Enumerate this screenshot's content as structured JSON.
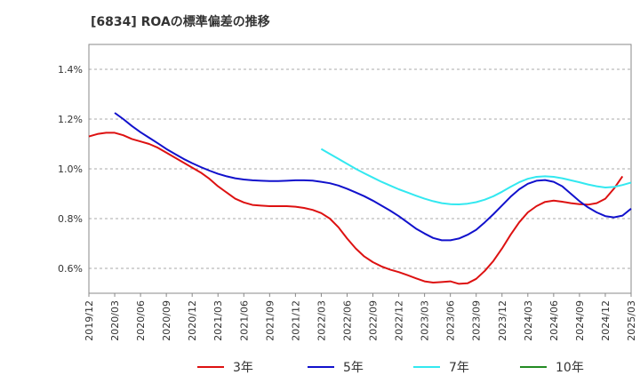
{
  "chart_data": {
    "type": "line",
    "title": "[6834]  ROAの標準偏差の推移",
    "xlabel": "",
    "ylabel": "",
    "ylim": [
      0.5,
      1.5
    ],
    "yticks": [
      0.6,
      0.8,
      1.0,
      1.2,
      1.4
    ],
    "ytick_labels": [
      "0.6%",
      "0.8%",
      "1.0%",
      "1.2%",
      "1.4%"
    ],
    "xtick_labels": [
      "2019/12",
      "2020/03",
      "2020/06",
      "2020/09",
      "2020/12",
      "2021/03",
      "2021/06",
      "2021/09",
      "2021/12",
      "2022/03",
      "2022/06",
      "2022/09",
      "2022/12",
      "2023/03",
      "2023/06",
      "2023/09",
      "2023/12",
      "2024/03",
      "2024/06",
      "2024/09",
      "2024/12",
      "2025/03"
    ],
    "grid": "horizontal",
    "legend_position": "bottom",
    "series": [
      {
        "name": "3年",
        "color": "#dd1111",
        "points": [
          [
            "2019/12",
            1.13
          ],
          [
            "2020/01",
            1.14
          ],
          [
            "2020/02",
            1.145
          ],
          [
            "2020/03",
            1.145
          ],
          [
            "2020/04",
            1.135
          ],
          [
            "2020/05",
            1.12
          ],
          [
            "2020/06",
            1.11
          ],
          [
            "2020/07",
            1.1
          ],
          [
            "2020/08",
            1.085
          ],
          [
            "2020/09",
            1.065
          ],
          [
            "2020/10",
            1.045
          ],
          [
            "2020/11",
            1.025
          ],
          [
            "2020/12",
            1.005
          ],
          [
            "2021/01",
            0.985
          ],
          [
            "2021/02",
            0.96
          ],
          [
            "2021/03",
            0.93
          ],
          [
            "2021/04",
            0.905
          ],
          [
            "2021/05",
            0.88
          ],
          [
            "2021/06",
            0.865
          ],
          [
            "2021/07",
            0.855
          ],
          [
            "2021/08",
            0.852
          ],
          [
            "2021/09",
            0.85
          ],
          [
            "2021/10",
            0.85
          ],
          [
            "2021/11",
            0.85
          ],
          [
            "2021/12",
            0.848
          ],
          [
            "2022/01",
            0.843
          ],
          [
            "2022/02",
            0.835
          ],
          [
            "2022/03",
            0.822
          ],
          [
            "2022/04",
            0.8
          ],
          [
            "2022/05",
            0.765
          ],
          [
            "2022/06",
            0.72
          ],
          [
            "2022/07",
            0.68
          ],
          [
            "2022/08",
            0.648
          ],
          [
            "2022/09",
            0.625
          ],
          [
            "2022/10",
            0.608
          ],
          [
            "2022/11",
            0.595
          ],
          [
            "2022/12",
            0.585
          ],
          [
            "2023/01",
            0.573
          ],
          [
            "2023/02",
            0.56
          ],
          [
            "2023/03",
            0.548
          ],
          [
            "2023/04",
            0.543
          ],
          [
            "2023/05",
            0.545
          ],
          [
            "2023/06",
            0.548
          ],
          [
            "2023/07",
            0.538
          ],
          [
            "2023/08",
            0.54
          ],
          [
            "2023/09",
            0.558
          ],
          [
            "2023/10",
            0.59
          ],
          [
            "2023/11",
            0.63
          ],
          [
            "2023/12",
            0.68
          ],
          [
            "2024/01",
            0.735
          ],
          [
            "2024/02",
            0.785
          ],
          [
            "2024/03",
            0.825
          ],
          [
            "2024/04",
            0.85
          ],
          [
            "2024/05",
            0.867
          ],
          [
            "2024/06",
            0.872
          ],
          [
            "2024/07",
            0.868
          ],
          [
            "2024/08",
            0.862
          ],
          [
            "2024/09",
            0.858
          ],
          [
            "2024/10",
            0.856
          ],
          [
            "2024/11",
            0.862
          ],
          [
            "2024/12",
            0.88
          ],
          [
            "2025/01",
            0.92
          ],
          [
            "2025/02",
            0.97
          ]
        ]
      },
      {
        "name": "5年",
        "color": "#1111cc",
        "points": [
          [
            "2020/03",
            1.225
          ],
          [
            "2020/04",
            1.2
          ],
          [
            "2020/05",
            1.172
          ],
          [
            "2020/06",
            1.147
          ],
          [
            "2020/07",
            1.125
          ],
          [
            "2020/08",
            1.103
          ],
          [
            "2020/09",
            1.08
          ],
          [
            "2020/10",
            1.06
          ],
          [
            "2020/11",
            1.04
          ],
          [
            "2020/12",
            1.023
          ],
          [
            "2021/01",
            1.007
          ],
          [
            "2021/02",
            0.993
          ],
          [
            "2021/03",
            0.98
          ],
          [
            "2021/04",
            0.97
          ],
          [
            "2021/05",
            0.962
          ],
          [
            "2021/06",
            0.957
          ],
          [
            "2021/07",
            0.954
          ],
          [
            "2021/08",
            0.952
          ],
          [
            "2021/09",
            0.951
          ],
          [
            "2021/10",
            0.951
          ],
          [
            "2021/11",
            0.952
          ],
          [
            "2021/12",
            0.954
          ],
          [
            "2022/01",
            0.954
          ],
          [
            "2022/02",
            0.953
          ],
          [
            "2022/03",
            0.948
          ],
          [
            "2022/04",
            0.942
          ],
          [
            "2022/05",
            0.933
          ],
          [
            "2022/06",
            0.92
          ],
          [
            "2022/07",
            0.905
          ],
          [
            "2022/08",
            0.89
          ],
          [
            "2022/09",
            0.872
          ],
          [
            "2022/10",
            0.852
          ],
          [
            "2022/11",
            0.832
          ],
          [
            "2022/12",
            0.81
          ],
          [
            "2023/01",
            0.785
          ],
          [
            "2023/02",
            0.76
          ],
          [
            "2023/03",
            0.74
          ],
          [
            "2023/04",
            0.722
          ],
          [
            "2023/05",
            0.713
          ],
          [
            "2023/06",
            0.713
          ],
          [
            "2023/07",
            0.72
          ],
          [
            "2023/08",
            0.735
          ],
          [
            "2023/09",
            0.755
          ],
          [
            "2023/10",
            0.785
          ],
          [
            "2023/11",
            0.818
          ],
          [
            "2023/12",
            0.853
          ],
          [
            "2024/01",
            0.888
          ],
          [
            "2024/02",
            0.918
          ],
          [
            "2024/03",
            0.94
          ],
          [
            "2024/04",
            0.952
          ],
          [
            "2024/05",
            0.955
          ],
          [
            "2024/06",
            0.948
          ],
          [
            "2024/07",
            0.93
          ],
          [
            "2024/08",
            0.9
          ],
          [
            "2024/09",
            0.87
          ],
          [
            "2024/10",
            0.845
          ],
          [
            "2024/11",
            0.825
          ],
          [
            "2024/12",
            0.81
          ],
          [
            "2025/01",
            0.805
          ],
          [
            "2025/02",
            0.812
          ],
          [
            "2025/03",
            0.84
          ]
        ]
      },
      {
        "name": "7年",
        "color": "#33e8f0",
        "points": [
          [
            "2022/03",
            1.08
          ],
          [
            "2022/04",
            1.06
          ],
          [
            "2022/05",
            1.04
          ],
          [
            "2022/06",
            1.02
          ],
          [
            "2022/07",
            1.0
          ],
          [
            "2022/08",
            0.982
          ],
          [
            "2022/09",
            0.965
          ],
          [
            "2022/10",
            0.948
          ],
          [
            "2022/11",
            0.933
          ],
          [
            "2022/12",
            0.918
          ],
          [
            "2023/01",
            0.905
          ],
          [
            "2023/02",
            0.892
          ],
          [
            "2023/03",
            0.88
          ],
          [
            "2023/04",
            0.87
          ],
          [
            "2023/05",
            0.862
          ],
          [
            "2023/06",
            0.858
          ],
          [
            "2023/07",
            0.857
          ],
          [
            "2023/08",
            0.86
          ],
          [
            "2023/09",
            0.866
          ],
          [
            "2023/10",
            0.876
          ],
          [
            "2023/11",
            0.89
          ],
          [
            "2023/12",
            0.908
          ],
          [
            "2024/01",
            0.928
          ],
          [
            "2024/02",
            0.946
          ],
          [
            "2024/03",
            0.96
          ],
          [
            "2024/04",
            0.968
          ],
          [
            "2024/05",
            0.97
          ],
          [
            "2024/06",
            0.968
          ],
          [
            "2024/07",
            0.962
          ],
          [
            "2024/08",
            0.954
          ],
          [
            "2024/09",
            0.946
          ],
          [
            "2024/10",
            0.937
          ],
          [
            "2024/11",
            0.93
          ],
          [
            "2024/12",
            0.925
          ],
          [
            "2025/01",
            0.927
          ],
          [
            "2025/02",
            0.935
          ],
          [
            "2025/03",
            0.945
          ]
        ]
      },
      {
        "name": "10年",
        "color": "#228b22",
        "points": []
      }
    ]
  }
}
